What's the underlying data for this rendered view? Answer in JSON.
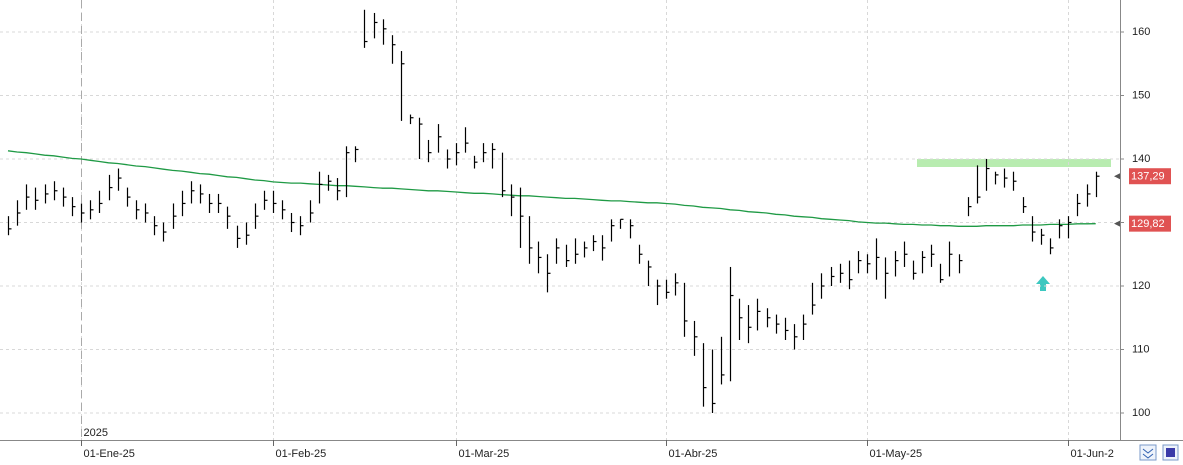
{
  "chart_data": {
    "type": "ohlc",
    "year_label": "2025",
    "categories": [
      null,
      null,
      null,
      null,
      null,
      null,
      null,
      null,
      "01-Ene-25",
      null,
      null,
      null,
      null,
      null,
      null,
      null,
      null,
      null,
      null,
      null,
      null,
      null,
      null,
      null,
      null,
      null,
      null,
      null,
      null,
      "01-Feb-25",
      null,
      null,
      null,
      null,
      null,
      null,
      null,
      null,
      null,
      null,
      null,
      null,
      null,
      null,
      null,
      null,
      null,
      null,
      null,
      "01-Mar-25",
      null,
      null,
      null,
      null,
      null,
      null,
      null,
      null,
      null,
      null,
      null,
      null,
      null,
      null,
      null,
      null,
      null,
      null,
      null,
      null,
      null,
      null,
      "01-Abr-25",
      null,
      null,
      null,
      null,
      null,
      null,
      null,
      null,
      null,
      null,
      null,
      null,
      null,
      null,
      null,
      null,
      null,
      null,
      null,
      null,
      null,
      "01-May-25",
      null,
      null,
      null,
      null,
      null,
      null,
      null,
      null,
      null,
      null,
      null,
      null,
      null,
      null,
      null,
      null,
      null,
      null,
      null,
      null,
      null,
      "01-Jun-2",
      null,
      null,
      null
    ],
    "high": [
      131.0,
      133.5,
      136.0,
      135.5,
      136.0,
      136.5,
      135.5,
      134.0,
      133.0,
      133.5,
      135.0,
      137.5,
      138.5,
      135.5,
      133.5,
      133.0,
      131.0,
      130.0,
      133.0,
      135.0,
      136.5,
      136.0,
      134.5,
      134.5,
      132.5,
      129.5,
      130.0,
      133.0,
      135.0,
      135.0,
      133.5,
      131.5,
      131.0,
      133.5,
      138.0,
      137.5,
      137.0,
      142.0,
      142.0,
      163.5,
      163.0,
      162.0,
      159.5,
      157.0,
      147.0,
      146.5,
      143.0,
      145.5,
      141.5,
      142.5,
      145.0,
      140.5,
      142.5,
      142.5,
      141.0,
      136.0,
      135.5,
      131.0,
      127.0,
      125.0,
      127.5,
      126.5,
      127.5,
      127.0,
      128.0,
      128.0,
      130.5,
      130.5,
      130.5,
      126.5,
      124.0,
      121.0,
      121.0,
      122.0,
      120.5,
      114.5,
      111.0,
      110.0,
      112.0,
      123.0,
      118.0,
      117.0,
      118.0,
      116.5,
      115.5,
      115.0,
      114.0,
      115.5,
      120.5,
      122.0,
      123.0,
      123.5,
      124.0,
      125.5,
      125.0,
      127.5,
      124.5,
      125.5,
      127.0,
      124.0,
      125.5,
      126.5,
      123.5,
      127.0,
      125.0,
      134.0,
      139.0,
      140.0,
      138.0,
      138.5,
      138.0,
      134.0,
      131.0,
      129.0,
      127.5,
      130.5,
      131.0,
      134.5,
      136.0,
      138.0
    ],
    "low": [
      128.0,
      129.5,
      132.0,
      132.0,
      133.0,
      133.5,
      132.5,
      131.0,
      130.0,
      130.5,
      131.5,
      133.5,
      135.0,
      132.5,
      130.5,
      130.0,
      128.0,
      127.0,
      129.0,
      131.0,
      133.0,
      133.0,
      131.5,
      131.5,
      129.0,
      126.0,
      126.5,
      129.0,
      132.0,
      131.5,
      130.5,
      128.5,
      128.0,
      130.0,
      133.0,
      135.0,
      133.5,
      134.0,
      139.5,
      157.5,
      159.0,
      158.0,
      155.0,
      146.0,
      145.5,
      140.0,
      139.5,
      141.0,
      138.5,
      139.0,
      141.0,
      138.5,
      139.5,
      138.5,
      134.0,
      131.0,
      126.0,
      123.5,
      122.0,
      119.0,
      123.5,
      123.0,
      123.5,
      124.5,
      125.5,
      124.0,
      127.0,
      129.0,
      127.5,
      123.5,
      120.0,
      117.0,
      118.0,
      118.5,
      112.0,
      109.0,
      101.0,
      100.0,
      104.5,
      105.0,
      111.5,
      111.0,
      113.0,
      113.5,
      112.5,
      111.5,
      110.0,
      111.5,
      115.5,
      118.0,
      120.0,
      120.5,
      119.5,
      122.0,
      122.0,
      121.0,
      118.0,
      121.5,
      123.0,
      121.0,
      122.0,
      123.0,
      120.5,
      121.5,
      122.0,
      131.0,
      133.0,
      135.0,
      136.0,
      135.5,
      135.0,
      131.5,
      127.0,
      126.5,
      125.0,
      127.5,
      127.5,
      131.0,
      132.5,
      134.0
    ],
    "close": [
      129.0,
      131.5,
      134.0,
      133.5,
      134.5,
      135.0,
      134.0,
      132.5,
      131.5,
      132.0,
      133.0,
      135.5,
      137.0,
      134.0,
      132.0,
      131.5,
      129.5,
      128.5,
      131.0,
      133.0,
      135.0,
      134.5,
      133.0,
      133.0,
      131.0,
      127.5,
      128.0,
      131.0,
      133.5,
      133.0,
      132.0,
      130.0,
      129.5,
      131.5,
      136.0,
      136.5,
      135.0,
      141.0,
      141.5,
      158.5,
      161.5,
      160.5,
      158.0,
      155.0,
      146.5,
      145.5,
      141.0,
      143.5,
      140.0,
      141.0,
      142.5,
      139.5,
      141.0,
      141.5,
      135.0,
      134.0,
      131.0,
      126.0,
      124.5,
      122.0,
      126.0,
      124.0,
      125.0,
      126.0,
      127.0,
      126.0,
      129.5,
      130.5,
      129.5,
      125.0,
      123.0,
      120.0,
      119.0,
      120.5,
      114.5,
      112.0,
      104.0,
      101.5,
      106.0,
      118.5,
      115.0,
      113.5,
      116.0,
      115.0,
      114.0,
      113.0,
      112.0,
      114.0,
      117.0,
      120.0,
      121.5,
      122.0,
      121.0,
      124.0,
      123.5,
      124.5,
      122.0,
      124.0,
      125.0,
      122.0,
      124.5,
      125.0,
      121.0,
      125.0,
      124.0,
      132.5,
      134.0,
      138.5,
      137.5,
      137.0,
      136.5,
      132.5,
      128.5,
      128.0,
      126.0,
      129.5,
      130.0,
      133.0,
      134.5,
      137.29
    ],
    "color": "#000000",
    "ma": {
      "color": "#1f9a45",
      "values": [
        141.3,
        141.1,
        141.0,
        140.8,
        140.6,
        140.5,
        140.3,
        140.1,
        140.0,
        139.8,
        139.6,
        139.4,
        139.3,
        139.1,
        138.9,
        138.8,
        138.6,
        138.4,
        138.2,
        138.1,
        137.9,
        137.7,
        137.6,
        137.4,
        137.2,
        137.1,
        136.9,
        136.7,
        136.6,
        136.4,
        136.3,
        136.2,
        136.2,
        136.1,
        136.0,
        135.9,
        135.8,
        135.8,
        135.7,
        135.6,
        135.5,
        135.4,
        135.4,
        135.3,
        135.2,
        135.1,
        135.0,
        135.0,
        134.9,
        134.8,
        134.7,
        134.6,
        134.6,
        134.5,
        134.4,
        134.3,
        134.2,
        134.2,
        134.1,
        134.0,
        133.9,
        133.8,
        133.8,
        133.7,
        133.6,
        133.5,
        133.4,
        133.4,
        133.3,
        133.2,
        133.1,
        133.1,
        133.0,
        132.9,
        132.7,
        132.6,
        132.4,
        132.3,
        132.2,
        132.0,
        131.9,
        131.7,
        131.6,
        131.5,
        131.3,
        131.2,
        131.0,
        130.9,
        130.8,
        130.6,
        130.5,
        130.4,
        130.3,
        130.1,
        130.0,
        129.9,
        129.9,
        129.8,
        129.7,
        129.7,
        129.6,
        129.6,
        129.5,
        129.5,
        129.4,
        129.4,
        129.4,
        129.5,
        129.5,
        129.5,
        129.5,
        129.6,
        129.6,
        129.6,
        129.7,
        129.7,
        129.7,
        129.8,
        129.8,
        129.82
      ]
    },
    "price_labels": [
      {
        "value": 137.29,
        "label": "137,29"
      },
      {
        "value": 129.82,
        "label": "129,82"
      }
    ],
    "label_color": "#e05252",
    "ylim": [
      95.75,
      165.04
    ],
    "yticks": [
      100,
      110,
      120,
      130,
      140,
      150,
      160
    ],
    "grid": true
  }
}
